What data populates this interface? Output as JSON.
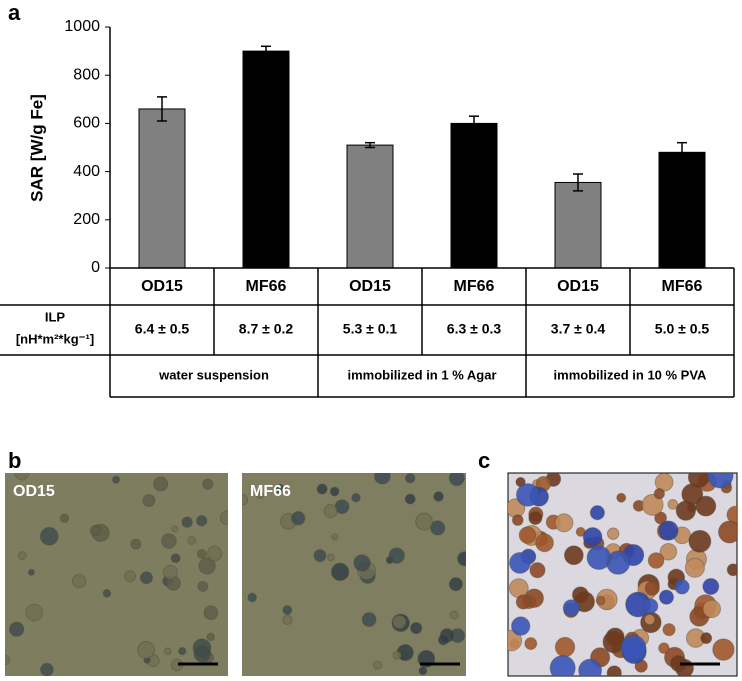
{
  "chart_data": {
    "type": "bar",
    "panel_label": "a",
    "y_label": "SAR [W/g Fe]",
    "categories": [
      "OD15",
      "MF66",
      "OD15",
      "MF66",
      "OD15",
      "MF66"
    ],
    "values": [
      660,
      900,
      510,
      600,
      355,
      480
    ],
    "errors": [
      50,
      20,
      10,
      30,
      35,
      40
    ],
    "colors": [
      "#808080",
      "#000000",
      "#808080",
      "#000000",
      "#808080",
      "#000000"
    ],
    "ylim": [
      0,
      1000
    ],
    "yticks": [
      0,
      200,
      400,
      600,
      800,
      1000
    ],
    "grid": false
  },
  "table": {
    "row_label": "ILP",
    "row_unit": "[nH*m²*kg⁻¹]",
    "ilp": [
      "6.4 ± 0.5",
      "8.7 ± 0.2",
      "5.3 ± 0.1",
      "6.3 ± 0.3",
      "3.7 ± 0.4",
      "5.0 ± 0.5"
    ],
    "groups": [
      "water suspension",
      "immobilized in 1 % Agar",
      "immobilized in 10 % PVA"
    ]
  },
  "panel_b": {
    "label": "b",
    "images": [
      "OD15",
      "MF66"
    ]
  },
  "panel_c": {
    "label": "c"
  }
}
